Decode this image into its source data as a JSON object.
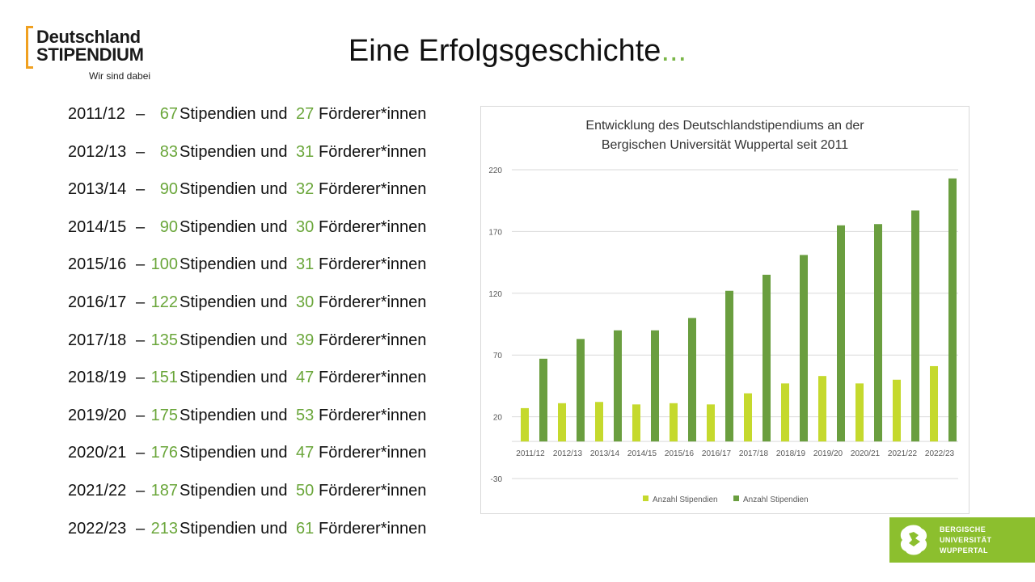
{
  "logo": {
    "line1": "Deutschland",
    "line2": "STIPENDIUM",
    "tagline": "Wir sind dabei"
  },
  "title": {
    "main": "Eine Erfolgsgeschichte",
    "ellipsis": "..."
  },
  "list": {
    "dash": "–",
    "word_stipendien": "Stipendien und",
    "word_foerderer": "Förderer*innen",
    "rows": [
      {
        "year": "2011/12",
        "stipendien": "67",
        "foerderer": "27"
      },
      {
        "year": "2012/13",
        "stipendien": "83",
        "foerderer": "31"
      },
      {
        "year": "2013/14",
        "stipendien": "90",
        "foerderer": "32"
      },
      {
        "year": "2014/15",
        "stipendien": "90",
        "foerderer": "30"
      },
      {
        "year": "2015/16",
        "stipendien": "100",
        "foerderer": "31"
      },
      {
        "year": "2016/17",
        "stipendien": "122",
        "foerderer": "30"
      },
      {
        "year": "2017/18",
        "stipendien": "135",
        "foerderer": "39"
      },
      {
        "year": "2018/19",
        "stipendien": "151",
        "foerderer": "47"
      },
      {
        "year": "2019/20",
        "stipendien": "175",
        "foerderer": "53"
      },
      {
        "year": "2020/21",
        "stipendien": "176",
        "foerderer": "47"
      },
      {
        "year": "2021/22",
        "stipendien": "187",
        "foerderer": "50"
      },
      {
        "year": "2022/23",
        "stipendien": "213",
        "foerderer": "61"
      }
    ]
  },
  "chart_data": {
    "type": "bar",
    "title_line1": "Entwicklung des Deutschlandstipendiums an der",
    "title_line2": "Bergischen Universität Wuppertal seit 2011",
    "categories": [
      "2011/12",
      "2012/13",
      "2013/14",
      "2014/15",
      "2015/16",
      "2016/17",
      "2017/18",
      "2018/19",
      "2019/20",
      "2020/21",
      "2021/22",
      "2022/23"
    ],
    "series": [
      {
        "name": "Anzahl Stipendien",
        "color": "#c5d92d",
        "values": [
          27,
          31,
          32,
          30,
          31,
          30,
          39,
          47,
          53,
          47,
          50,
          61
        ]
      },
      {
        "name": "Anzahl Stipendien",
        "color": "#6a9e3f",
        "values": [
          67,
          83,
          90,
          90,
          100,
          122,
          135,
          151,
          175,
          176,
          187,
          213
        ]
      }
    ],
    "ylim": [
      -30,
      220
    ],
    "yticks": [
      -30,
      20,
      70,
      120,
      170,
      220
    ],
    "grid": true,
    "legend": "bottom"
  },
  "footer_logo": {
    "line1": "BERGISCHE",
    "line2": "UNIVERSITÄT",
    "line3": "WUPPERTAL"
  }
}
